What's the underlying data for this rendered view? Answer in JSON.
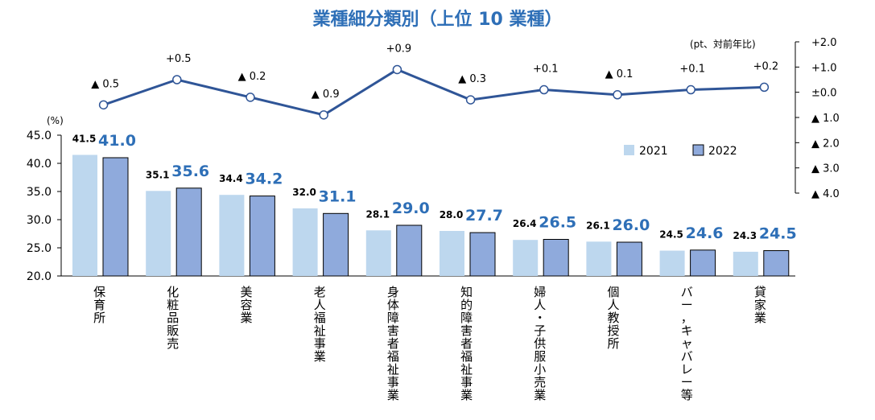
{
  "chart_data": {
    "title": "業種細分類別（上位 10 業種）",
    "bar_axis": {
      "unit": "(%)",
      "ylim": [
        20,
        45
      ],
      "ticks": [
        "20.0",
        "25.0",
        "30.0",
        "35.0",
        "40.0",
        "45.0"
      ]
    },
    "line_axis": {
      "unit": "(pt、対前年比)",
      "ylim": [
        -4,
        2
      ],
      "ticks": [
        "+2.0",
        "+1.0",
        "±0.0",
        "▲ 1.0",
        "▲ 2.0",
        "▲ 3.0",
        "▲ 4.0"
      ]
    },
    "categories": [
      "保育所",
      "化粧品販売",
      "美容業",
      "老人福祉事業",
      "身体障害者福祉事業",
      "知的障害者福祉事業",
      "婦人・子供服小売業",
      "個人教授所",
      "バー，キャバレー等",
      "貸家業"
    ],
    "series": [
      {
        "name": "2021",
        "type": "bar",
        "color": "#bdd7ee",
        "values": [
          41.5,
          35.1,
          34.4,
          32.0,
          28.1,
          28.0,
          26.4,
          26.1,
          24.5,
          24.3
        ],
        "labels": [
          "41.5",
          "35.1",
          "34.4",
          "32.0",
          "28.1",
          "28.0",
          "26.4",
          "26.1",
          "24.5",
          "24.3"
        ]
      },
      {
        "name": "2022",
        "type": "bar",
        "color": "#8faadc",
        "values": [
          41.0,
          35.6,
          34.2,
          31.1,
          29.0,
          27.7,
          26.5,
          26.0,
          24.6,
          24.5
        ],
        "labels": [
          "41.0",
          "35.6",
          "34.2",
          "31.1",
          "29.0",
          "27.7",
          "26.5",
          "26.0",
          "24.6",
          "24.5"
        ]
      },
      {
        "name": "",
        "type": "line",
        "color": "#2f5597",
        "values": [
          -0.5,
          0.5,
          -0.2,
          -0.9,
          0.9,
          -0.3,
          0.1,
          -0.1,
          0.1,
          0.2
        ],
        "labels": [
          "▲ 0.5",
          "+0.5",
          "▲ 0.2",
          "▲ 0.9",
          "+0.9",
          "▲ 0.3",
          "+0.1",
          "▲ 0.1",
          "+0.1",
          "+0.2"
        ]
      }
    ],
    "legend": {
      "position": "top-right",
      "items": [
        "2021",
        "2022"
      ]
    }
  }
}
